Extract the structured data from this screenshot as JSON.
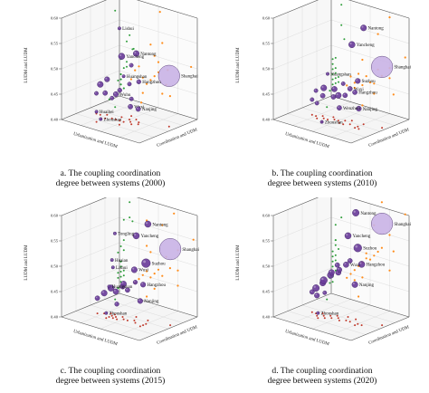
{
  "figure": {
    "colors": {
      "bubble": "#6a3d9a",
      "bubble_light": "#c9b3e6",
      "proj_xz": "#ff8c1a",
      "proj_yz": "#2e9e3a",
      "proj_xy": "#c0392b",
      "grid": "#d6d6d6",
      "frame": "#555555"
    }
  },
  "chart_data": [
    {
      "type": "scatter",
      "caption_line1": "a. The coupling coordination",
      "caption_line2": "degree between systems (2000)",
      "zlabel": "LUDM and LUDM",
      "xlabel": "Urbanization and LUDM",
      "ylabel": "Coordination and UDM",
      "zticks": [
        "0.40",
        "0.45",
        "0.50",
        "0.55",
        "0.60"
      ],
      "zlim": [
        0.4,
        0.6
      ],
      "points": [
        {
          "label": "Lishui",
          "u": 0.52,
          "v": 0.3,
          "z": 0.59,
          "s": 0.8
        },
        {
          "label": "Yancheng",
          "u": 0.4,
          "v": 0.5,
          "z": 0.52,
          "s": 1.6
        },
        {
          "label": "Nantong",
          "u": 0.55,
          "v": 0.55,
          "z": 0.53,
          "s": 1.5
        },
        {
          "label": "Huangshan",
          "u": 0.5,
          "v": 0.4,
          "z": 0.49,
          "s": 0.8
        },
        {
          "label": "Hangzhou",
          "u": 0.62,
          "v": 0.5,
          "z": 0.48,
          "s": 1.1
        },
        {
          "label": "Shanghai",
          "u": 0.92,
          "v": 0.62,
          "z": 0.5,
          "s": 4.0
        },
        {
          "label": "Wuhu",
          "u": 0.4,
          "v": 0.4,
          "z": 0.45,
          "s": 1.3
        },
        {
          "label": "Wuxi",
          "u": 0.55,
          "v": 0.45,
          "z": 0.43,
          "s": 1.2
        },
        {
          "label": "Nanjing",
          "u": 0.65,
          "v": 0.45,
          "z": 0.43,
          "s": 1.2
        },
        {
          "label": "Zhoushan",
          "u": 0.28,
          "v": 0.3,
          "z": 0.4,
          "s": 0.8
        },
        {
          "label": "Huaibei",
          "u": 0.3,
          "v": 0.2,
          "z": 0.42,
          "s": 0.8
        },
        {
          "label": "",
          "u": 0.2,
          "v": 0.4,
          "z": 0.46,
          "s": 1.5
        },
        {
          "label": "",
          "u": 0.3,
          "v": 0.35,
          "z": 0.45,
          "s": 1.2
        },
        {
          "label": "",
          "u": 0.25,
          "v": 0.45,
          "z": 0.47,
          "s": 1.3
        },
        {
          "label": "",
          "u": 0.35,
          "v": 0.4,
          "z": 0.44,
          "s": 1.0
        },
        {
          "label": "",
          "u": 0.45,
          "v": 0.4,
          "z": 0.46,
          "s": 1.1
        },
        {
          "label": "",
          "u": 0.5,
          "v": 0.5,
          "z": 0.47,
          "s": 1.0
        },
        {
          "label": "",
          "u": 0.15,
          "v": 0.4,
          "z": 0.44,
          "s": 1.0
        },
        {
          "label": "",
          "u": 0.6,
          "v": 0.4,
          "z": 0.45,
          "s": 1.0
        },
        {
          "label": "",
          "u": 0.45,
          "v": 0.6,
          "z": 0.5,
          "s": 1.0
        }
      ]
    },
    {
      "type": "scatter",
      "caption_line1": "b. The coupling coordination",
      "caption_line2": "degree between systems (2010)",
      "zlabel": "LUDM and LUDM",
      "xlabel": "Urbanization and LUDM",
      "ylabel": "Coordination and UDM",
      "zticks": [
        "0.40",
        "0.45",
        "0.50",
        "0.55",
        "0.60"
      ],
      "zlim": [
        0.4,
        0.6
      ],
      "points": [
        {
          "label": "Nantong",
          "u": 0.75,
          "v": 0.55,
          "z": 0.59,
          "s": 1.5
        },
        {
          "label": "Yancheng",
          "u": 0.6,
          "v": 0.55,
          "z": 0.55,
          "s": 1.6
        },
        {
          "label": "Shanghai",
          "u": 0.95,
          "v": 0.6,
          "z": 0.52,
          "s": 4.0
        },
        {
          "label": "Huangshan",
          "u": 0.4,
          "v": 0.4,
          "z": 0.49,
          "s": 0.8
        },
        {
          "label": "Suzhou",
          "u": 0.75,
          "v": 0.45,
          "z": 0.49,
          "s": 1.3
        },
        {
          "label": "Hangzhou",
          "u": 0.75,
          "v": 0.4,
          "z": 0.47,
          "s": 1.2
        },
        {
          "label": "Nanjing",
          "u": 0.8,
          "v": 0.4,
          "z": 0.44,
          "s": 1.3
        },
        {
          "label": "Wuxi",
          "u": 0.65,
          "v": 0.45,
          "z": 0.47,
          "s": 1.2
        },
        {
          "label": "Wenzhou",
          "u": 0.55,
          "v": 0.4,
          "z": 0.43,
          "s": 1.2
        },
        {
          "label": "Zhoushan",
          "u": 0.4,
          "v": 0.3,
          "z": 0.4,
          "s": 0.8
        },
        {
          "label": "",
          "u": 0.25,
          "v": 0.4,
          "z": 0.45,
          "s": 1.0
        },
        {
          "label": "",
          "u": 0.3,
          "v": 0.45,
          "z": 0.44,
          "s": 1.2
        },
        {
          "label": "",
          "u": 0.35,
          "v": 0.4,
          "z": 0.46,
          "s": 1.5
        },
        {
          "label": "",
          "u": 0.45,
          "v": 0.45,
          "z": 0.46,
          "s": 1.4
        },
        {
          "label": "",
          "u": 0.5,
          "v": 0.45,
          "z": 0.45,
          "s": 1.5
        },
        {
          "label": "",
          "u": 0.4,
          "v": 0.5,
          "z": 0.44,
          "s": 1.2
        },
        {
          "label": "",
          "u": 0.55,
          "v": 0.5,
          "z": 0.45,
          "s": 1.2
        },
        {
          "label": "",
          "u": 0.3,
          "v": 0.35,
          "z": 0.43,
          "s": 1.0
        },
        {
          "label": "",
          "u": 0.2,
          "v": 0.4,
          "z": 0.43,
          "s": 1.0
        },
        {
          "label": "",
          "u": 0.6,
          "v": 0.4,
          "z": 0.48,
          "s": 1.0
        }
      ]
    },
    {
      "type": "scatter",
      "caption_line1": "c. The coupling coordination",
      "caption_line2": "degree between systems (2015)",
      "zlabel": "LUDM and LUDM",
      "xlabel": "Urbanization and LUDM",
      "ylabel": "Coordination and UDM",
      "zticks": [
        "0.40",
        "0.45",
        "0.50",
        "0.55",
        "0.60"
      ],
      "zlim": [
        0.4,
        0.6
      ],
      "points": [
        {
          "label": "Nantong",
          "u": 0.7,
          "v": 0.55,
          "z": 0.59,
          "s": 1.6
        },
        {
          "label": "Yancheng",
          "u": 0.55,
          "v": 0.55,
          "z": 0.56,
          "s": 1.6
        },
        {
          "label": "Shanghai",
          "u": 0.95,
          "v": 0.6,
          "z": 0.55,
          "s": 4.0
        },
        {
          "label": "Tongling",
          "u": 0.35,
          "v": 0.45,
          "z": 0.56,
          "s": 0.8
        },
        {
          "label": "Suzhou",
          "u": 0.75,
          "v": 0.45,
          "z": 0.52,
          "s": 2.2
        },
        {
          "label": "Huaian",
          "u": 0.35,
          "v": 0.4,
          "z": 0.51,
          "s": 0.8
        },
        {
          "label": "Lishui",
          "u": 0.4,
          "v": 0.35,
          "z": 0.5,
          "s": 0.8
        },
        {
          "label": "Wuxi",
          "u": 0.6,
          "v": 0.45,
          "z": 0.5,
          "s": 1.5
        },
        {
          "label": "Huangshan",
          "u": 0.35,
          "v": 0.35,
          "z": 0.46,
          "s": 0.8
        },
        {
          "label": "Hangzhou",
          "u": 0.75,
          "v": 0.4,
          "z": 0.48,
          "s": 1.3
        },
        {
          "label": "Nanjing",
          "u": 0.75,
          "v": 0.35,
          "z": 0.45,
          "s": 1.3
        },
        {
          "label": "Zhoushan",
          "u": 0.35,
          "v": 0.3,
          "z": 0.41,
          "s": 0.8
        },
        {
          "label": "",
          "u": 0.25,
          "v": 0.4,
          "z": 0.44,
          "s": 1.5
        },
        {
          "label": "",
          "u": 0.3,
          "v": 0.45,
          "z": 0.45,
          "s": 1.6
        },
        {
          "label": "",
          "u": 0.4,
          "v": 0.4,
          "z": 0.45,
          "s": 1.4
        },
        {
          "label": "",
          "u": 0.45,
          "v": 0.45,
          "z": 0.46,
          "s": 1.3
        },
        {
          "label": "",
          "u": 0.5,
          "v": 0.4,
          "z": 0.47,
          "s": 1.4
        },
        {
          "label": "",
          "u": 0.55,
          "v": 0.4,
          "z": 0.46,
          "s": 1.2
        },
        {
          "label": "",
          "u": 0.45,
          "v": 0.35,
          "z": 0.43,
          "s": 1.1
        },
        {
          "label": "",
          "u": 0.2,
          "v": 0.35,
          "z": 0.43,
          "s": 1.2
        },
        {
          "label": "",
          "u": 0.65,
          "v": 0.4,
          "z": 0.48,
          "s": 1.1
        }
      ]
    },
    {
      "type": "scatter",
      "caption_line1": "d. The coupling coordination",
      "caption_line2": "degree between systems (2020)",
      "zlabel": "LUDM and LUDM",
      "xlabel": "Urbanization and LUDM",
      "ylabel": "Coordination and UDM",
      "zticks": [
        "0.40",
        "0.45",
        "0.50",
        "0.55",
        "0.60"
      ],
      "zlim": [
        0.4,
        0.6
      ],
      "points": [
        {
          "label": "Nantong",
          "u": 0.65,
          "v": 0.55,
          "z": 0.61,
          "s": 1.7
        },
        {
          "label": "Shanghai",
          "u": 0.95,
          "v": 0.6,
          "z": 0.6,
          "s": 4.0
        },
        {
          "label": "Yancheng",
          "u": 0.55,
          "v": 0.55,
          "z": 0.56,
          "s": 1.6
        },
        {
          "label": "Suzhou",
          "u": 0.75,
          "v": 0.45,
          "z": 0.55,
          "s": 2.0
        },
        {
          "label": "Hangzhou",
          "u": 0.8,
          "v": 0.45,
          "z": 0.52,
          "s": 1.6
        },
        {
          "label": "Wuxi",
          "u": 0.6,
          "v": 0.45,
          "z": 0.51,
          "s": 1.4
        },
        {
          "label": "Nanjing",
          "u": 0.75,
          "v": 0.4,
          "z": 0.48,
          "s": 1.5
        },
        {
          "label": "Zhoushan",
          "u": 0.35,
          "v": 0.3,
          "z": 0.41,
          "s": 0.8
        },
        {
          "label": "",
          "u": 0.25,
          "v": 0.4,
          "z": 0.45,
          "s": 1.7
        },
        {
          "label": "",
          "u": 0.3,
          "v": 0.45,
          "z": 0.46,
          "s": 1.5
        },
        {
          "label": "",
          "u": 0.35,
          "v": 0.4,
          "z": 0.47,
          "s": 1.8
        },
        {
          "label": "",
          "u": 0.4,
          "v": 0.45,
          "z": 0.48,
          "s": 1.6
        },
        {
          "label": "",
          "u": 0.45,
          "v": 0.4,
          "z": 0.49,
          "s": 1.5
        },
        {
          "label": "",
          "u": 0.5,
          "v": 0.45,
          "z": 0.49,
          "s": 1.4
        },
        {
          "label": "",
          "u": 0.55,
          "v": 0.4,
          "z": 0.5,
          "s": 1.3
        },
        {
          "label": "",
          "u": 0.3,
          "v": 0.35,
          "z": 0.44,
          "s": 1.3
        },
        {
          "label": "",
          "u": 0.2,
          "v": 0.4,
          "z": 0.44,
          "s": 1.2
        },
        {
          "label": "",
          "u": 0.45,
          "v": 0.5,
          "z": 0.5,
          "s": 1.2
        },
        {
          "label": "",
          "u": 0.65,
          "v": 0.45,
          "z": 0.52,
          "s": 1.2
        },
        {
          "label": "",
          "u": 0.4,
          "v": 0.35,
          "z": 0.45,
          "s": 1.0
        }
      ]
    }
  ]
}
